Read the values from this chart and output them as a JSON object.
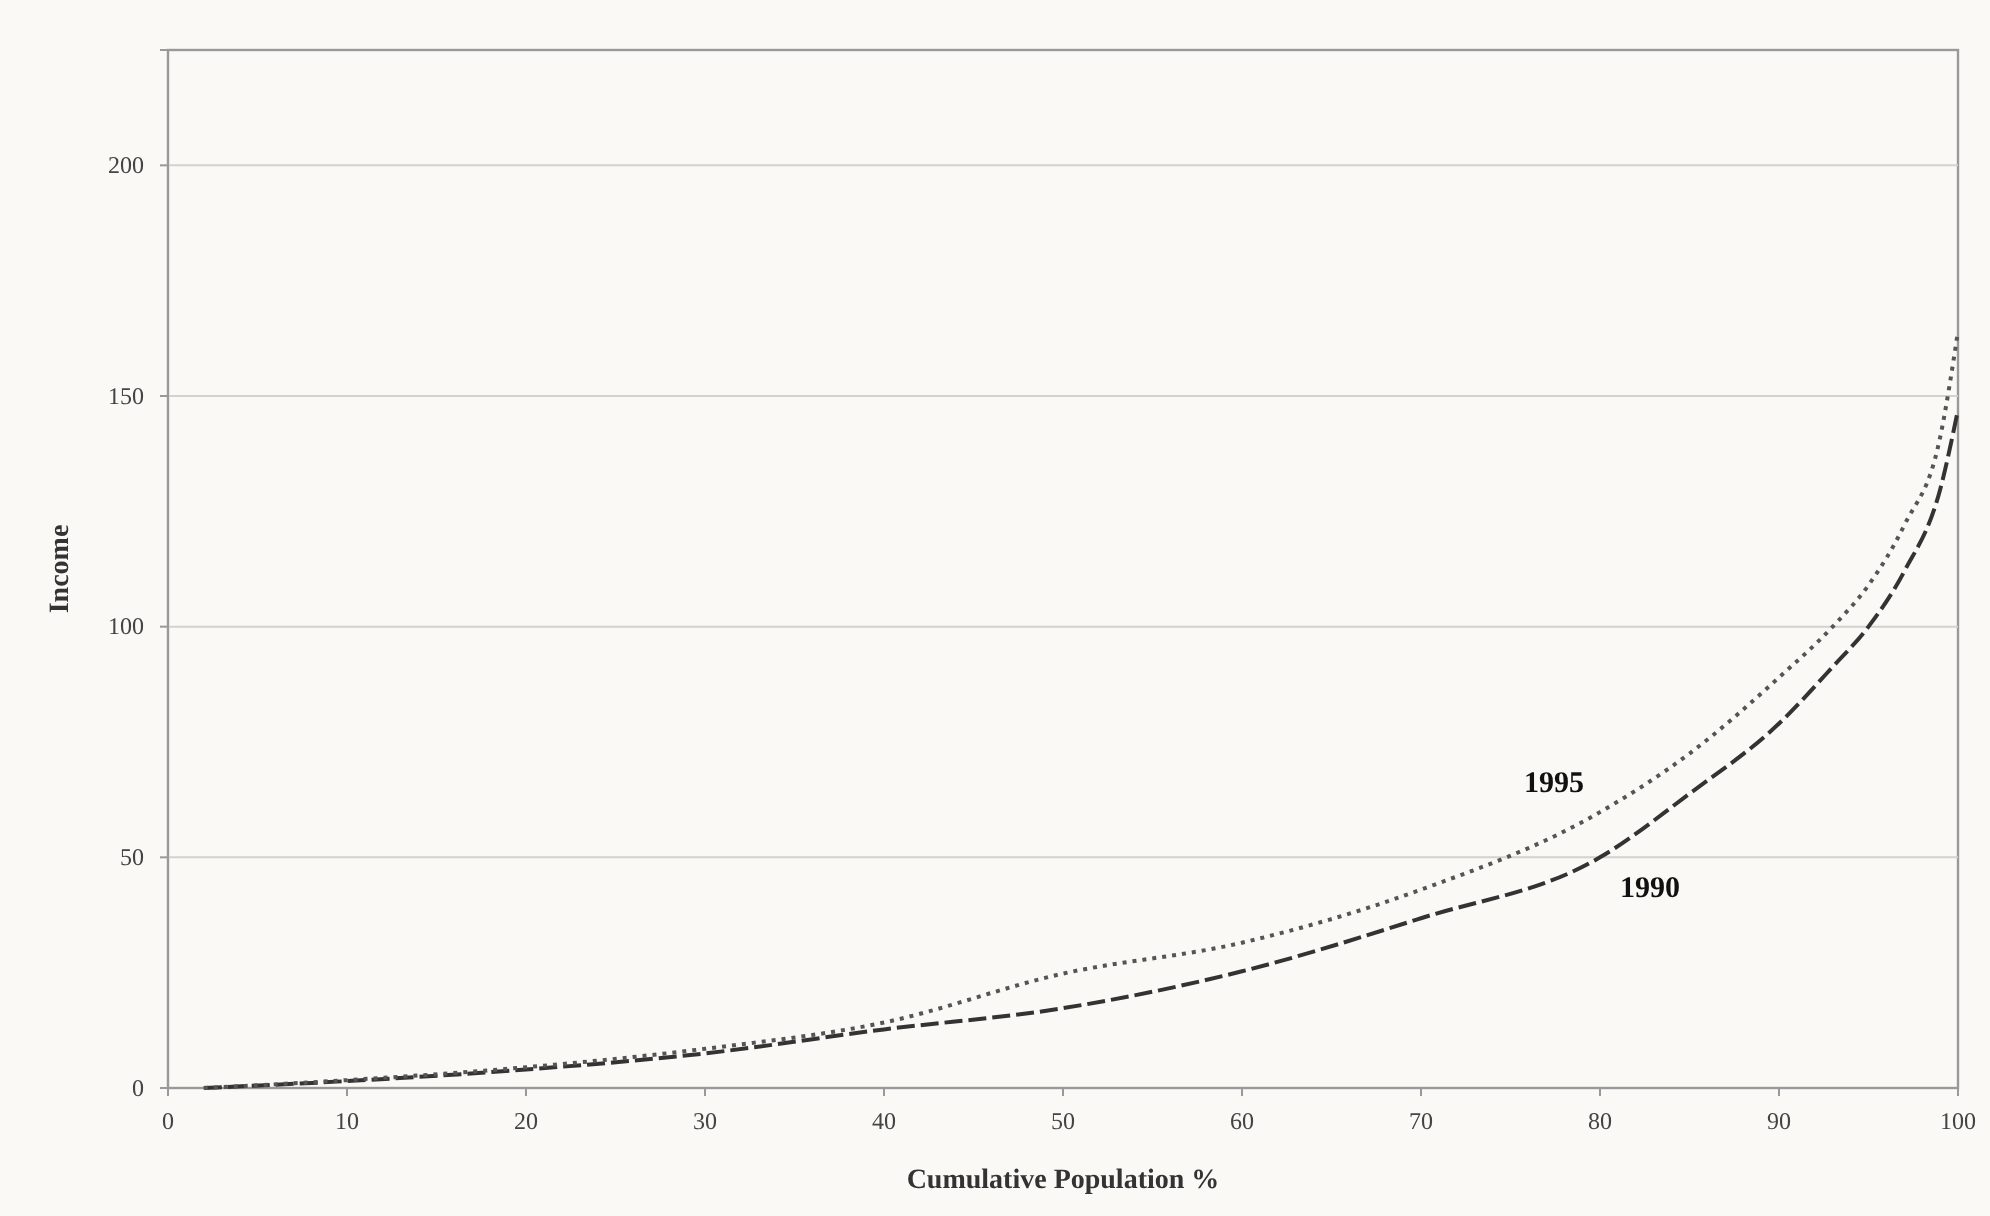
{
  "chart_data": {
    "type": "line",
    "xlabel": "Cumulative Population %",
    "ylabel": "Income",
    "xlim": [
      0,
      100
    ],
    "ylim": [
      0,
      225
    ],
    "xticks": [
      0,
      10,
      20,
      30,
      40,
      50,
      60,
      70,
      80,
      90,
      100
    ],
    "yticks": [
      0,
      50,
      100,
      150,
      200
    ],
    "grid": "y",
    "legend": false,
    "marker": "none",
    "series": [
      {
        "name": "1990",
        "color": "#333333",
        "line_style": "dashed",
        "x": [
          2,
          10,
          20,
          30,
          40,
          50,
          60,
          70,
          80,
          85,
          90,
          93,
          95,
          97,
          99,
          100
        ],
        "values": [
          0,
          1.5,
          4,
          7.5,
          12.7,
          17.3,
          25.3,
          36.8,
          50,
          63.8,
          79,
          91.3,
          100,
          112,
          129.7,
          147
        ]
      },
      {
        "name": "1995",
        "color": "#555555",
        "line_style": "dotted",
        "x": [
          2,
          10,
          20,
          30,
          40,
          50,
          60,
          70,
          80,
          85,
          90,
          93,
          95,
          97,
          99,
          100
        ],
        "values": [
          0,
          1.7,
          4.5,
          8.5,
          14.2,
          24.8,
          31.5,
          43,
          59.8,
          72.5,
          89,
          100,
          109,
          122,
          141,
          164
        ]
      }
    ]
  }
}
